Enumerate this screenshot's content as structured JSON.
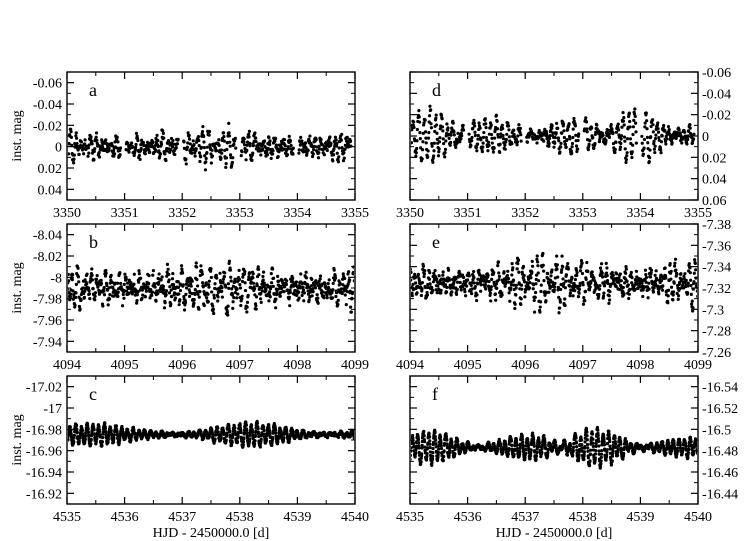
{
  "xlabel": "HJD - 2450000.0 [d]",
  "ylabel": "inst. mag",
  "chart_data": [
    {
      "id": "a",
      "type": "scatter",
      "panel_label": "a",
      "xlim": [
        3350,
        3355
      ],
      "ylim": [
        0.05,
        -0.07
      ],
      "xticks": [
        3350,
        3351,
        3352,
        3353,
        3354,
        3355
      ],
      "xtick_labels": [
        "3350",
        "3351",
        "3352",
        "3353",
        "3354",
        "3355"
      ],
      "yticks": [
        -0.06,
        -0.04,
        -0.02,
        0,
        0.02,
        0.04
      ],
      "ytick_labels": [
        "-0.06",
        "-0.04",
        "-0.02",
        "0",
        "0.02",
        "0.04"
      ],
      "ytick_side": "left",
      "ylabel": "inst. mag",
      "xlabel": "",
      "signal": {
        "baseline": 0.0,
        "amplitude": 0.012,
        "noise": 0.005,
        "freqs": [
          11.3,
          8.7,
          6.2
        ],
        "phases": [
          0.3,
          1.7,
          2.9
        ],
        "nights": true,
        "n_points": 780
      }
    },
    {
      "id": "d",
      "type": "scatter",
      "panel_label": "d",
      "xlim": [
        3350,
        3355
      ],
      "ylim": [
        0.06,
        -0.06
      ],
      "xticks": [
        3350,
        3351,
        3352,
        3353,
        3354,
        3355
      ],
      "xtick_labels": [
        "3350",
        "3351",
        "3352",
        "3353",
        "3354",
        "3355"
      ],
      "yticks": [
        -0.06,
        -0.04,
        -0.02,
        0,
        0.02,
        0.04,
        0.06
      ],
      "ytick_labels": [
        "-0.06",
        "-0.04",
        "-0.02",
        "0",
        "0.02",
        "0.04",
        "0.06"
      ],
      "ytick_side": "right",
      "ylabel": "",
      "xlabel": "",
      "signal": {
        "baseline": 0.0,
        "amplitude": 0.016,
        "noise": 0.004,
        "freqs": [
          10.4,
          9.6,
          5.1
        ],
        "phases": [
          0.9,
          2.2,
          0.4
        ],
        "nights": true,
        "n_points": 780
      }
    },
    {
      "id": "b",
      "type": "scatter",
      "panel_label": "b",
      "xlim": [
        4094,
        4099
      ],
      "ylim": [
        -7.93,
        -8.05
      ],
      "xticks": [
        4094,
        4095,
        4096,
        4097,
        4098,
        4099
      ],
      "xtick_labels": [
        "4094",
        "4095",
        "4096",
        "4097",
        "4098",
        "4099"
      ],
      "yticks": [
        -8.04,
        -8.02,
        -8,
        -7.98,
        -7.96,
        -7.94
      ],
      "ytick_labels": [
        "-8.04",
        "-8.02",
        "-8",
        "-7.98",
        "-7.96",
        "-7.94"
      ],
      "ytick_side": "left",
      "ylabel": "inst. mag",
      "xlabel": "",
      "signal": {
        "baseline": -7.99,
        "amplitude": 0.016,
        "noise": 0.008,
        "freqs": [
          12.1,
          8.3,
          5.6
        ],
        "phases": [
          1.1,
          0.2,
          2.5
        ],
        "nights": false,
        "n_points": 860
      }
    },
    {
      "id": "e",
      "type": "scatter",
      "panel_label": "e",
      "xlim": [
        4094,
        4099
      ],
      "ylim": [
        -7.26,
        -7.38
      ],
      "xticks": [
        4094,
        4095,
        4096,
        4097,
        4098,
        4099
      ],
      "xtick_labels": [
        "4094",
        "4095",
        "4096",
        "4097",
        "4098",
        "4099"
      ],
      "yticks": [
        -7.38,
        -7.36,
        -7.34,
        -7.32,
        -7.3,
        -7.28,
        -7.26
      ],
      "ytick_labels": [
        "-7.38",
        "-7.36",
        "-7.34",
        "-7.32",
        "-7.3",
        "-7.28",
        "-7.26"
      ],
      "ytick_side": "right",
      "ylabel": "",
      "xlabel": "",
      "signal": {
        "baseline": -7.325,
        "amplitude": 0.017,
        "noise": 0.007,
        "freqs": [
          11.7,
          9.1,
          4.8
        ],
        "phases": [
          0.5,
          1.9,
          3.1
        ],
        "nights": false,
        "n_points": 860
      }
    },
    {
      "id": "c",
      "type": "scatter",
      "panel_label": "c",
      "xlim": [
        4535,
        4540
      ],
      "ylim": [
        -16.91,
        -17.03
      ],
      "xticks": [
        4535,
        4536,
        4537,
        4538,
        4539,
        4540
      ],
      "xtick_labels": [
        "4535",
        "4536",
        "4537",
        "4538",
        "4539",
        "4540"
      ],
      "yticks": [
        -17.02,
        -17,
        -16.98,
        -16.96,
        -16.94,
        -16.92
      ],
      "ytick_labels": [
        "-17.02",
        "-17",
        "-16.98",
        "-16.96",
        "-16.94",
        "-16.92"
      ],
      "ytick_side": "left",
      "ylabel": "inst. mag",
      "xlabel": "HJD - 2450000.0 [d]",
      "signal": {
        "baseline": -16.975,
        "amplitude": 0.007,
        "noise": 0.0015,
        "freqs": [
          10.2,
          9.8,
          6.1
        ],
        "phases": [
          0.7,
          2.4,
          1.3
        ],
        "nights": false,
        "n_points": 1400
      }
    },
    {
      "id": "f",
      "type": "scatter",
      "panel_label": "f",
      "xlim": [
        4535,
        4540
      ],
      "ylim": [
        -16.43,
        -16.55
      ],
      "xticks": [
        4535,
        4536,
        4537,
        4538,
        4539,
        4540
      ],
      "xtick_labels": [
        "4535",
        "4536",
        "4537",
        "4538",
        "4539",
        "4540"
      ],
      "yticks": [
        -16.54,
        -16.52,
        -16.5,
        -16.48,
        -16.46,
        -16.44
      ],
      "ytick_labels": [
        "-16.54",
        "-16.52",
        "-16.5",
        "-16.48",
        "-16.46",
        "-16.44"
      ],
      "ytick_side": "right",
      "ylabel": "",
      "xlabel": "HJD - 2450000.0 [d]",
      "signal": {
        "baseline": -16.483,
        "amplitude": 0.012,
        "noise": 0.0015,
        "freqs": [
          10.6,
          9.9,
          5.4
        ],
        "phases": [
          1.4,
          0.3,
          2.0
        ],
        "nights": false,
        "n_points": 1400
      }
    }
  ]
}
